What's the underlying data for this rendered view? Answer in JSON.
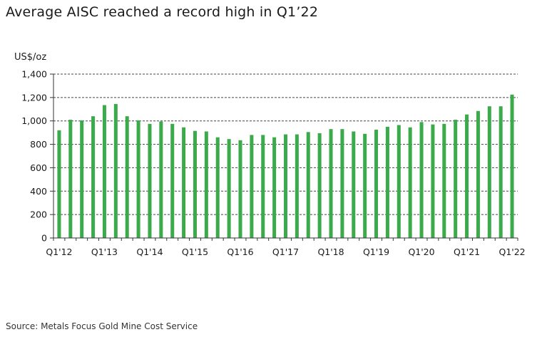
{
  "title": "Average AISC reached a record high in Q1’22",
  "source": "Source: Metals Focus Gold Mine Cost Service",
  "colors": {
    "bar": "#3aaa4a",
    "axis": "#333333",
    "grid": "#444444"
  },
  "chart_data": {
    "type": "bar",
    "title": "Average AISC reached a record high in Q1’22",
    "ylabel": "US$/oz",
    "xlabel": "",
    "ylim": [
      0,
      1400
    ],
    "yticks": [
      0,
      200,
      400,
      600,
      800,
      1000,
      1200,
      1400
    ],
    "ytick_labels": [
      "0",
      "200",
      "400",
      "600",
      "800",
      "1,000",
      "1,200",
      "1,400"
    ],
    "grid": "horizontal dashed",
    "xtick_labels": [
      "Q1'12",
      "Q1'13",
      "Q1'14",
      "Q1'15",
      "Q1'16",
      "Q1'17",
      "Q1'18",
      "Q1'19",
      "Q1'20",
      "Q1'21",
      "Q1'22"
    ],
    "xtick_every": 4,
    "categories": [
      "Q1'12",
      "Q2'12",
      "Q3'12",
      "Q4'12",
      "Q1'13",
      "Q2'13",
      "Q3'13",
      "Q4'13",
      "Q1'14",
      "Q2'14",
      "Q3'14",
      "Q4'14",
      "Q1'15",
      "Q2'15",
      "Q3'15",
      "Q4'15",
      "Q1'16",
      "Q2'16",
      "Q3'16",
      "Q4'16",
      "Q1'17",
      "Q2'17",
      "Q3'17",
      "Q4'17",
      "Q1'18",
      "Q2'18",
      "Q3'18",
      "Q4'18",
      "Q1'19",
      "Q2'19",
      "Q3'19",
      "Q4'19",
      "Q1'20",
      "Q2'20",
      "Q3'20",
      "Q4'20",
      "Q1'21",
      "Q2'21",
      "Q3'21",
      "Q4'21",
      "Q1'22"
    ],
    "values": [
      920,
      1010,
      1005,
      1040,
      1135,
      1145,
      1040,
      1005,
      975,
      995,
      975,
      945,
      915,
      910,
      860,
      845,
      835,
      880,
      880,
      860,
      885,
      885,
      905,
      895,
      930,
      930,
      910,
      890,
      925,
      950,
      965,
      945,
      990,
      970,
      975,
      1010,
      1055,
      1085,
      1125,
      1125,
      1225
    ]
  }
}
